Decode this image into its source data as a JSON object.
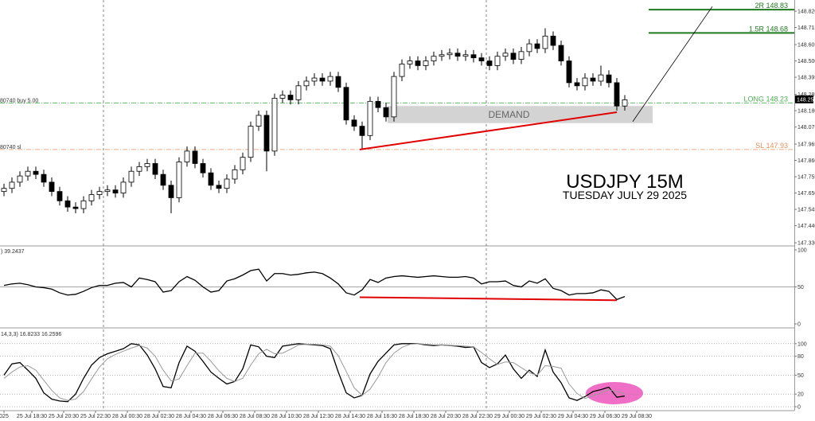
{
  "chart_data": [
    {
      "type": "candlestick",
      "title": "USDJPY 15M",
      "subtitle": "TUESDAY JULY 29 2025",
      "xlim": [
        -0.5,
        99.3
      ],
      "ylim": [
        147.315,
        148.892
      ],
      "yticks": [
        {
          "value": 148.82,
          "label": "148.820"
        },
        148.715,
        148.605,
        {
          "value": 148.5,
          "label": "148.500"
        },
        148.395,
        148.285,
        {
          "value": 148.18,
          "label": "148.180"
        },
        148.075,
        147.965,
        {
          "value": 147.86,
          "label": "147.860"
        },
        147.755,
        {
          "value": 147.65,
          "label": "147.650"
        },
        147.545,
        {
          "value": 147.44,
          "label": "147.440"
        },
        {
          "value": 147.33,
          "label": "147.330"
        }
      ],
      "up_color": "#ffffff",
      "down_color": "#000000",
      "open": [
        147.66,
        147.68,
        147.72,
        147.76,
        147.79,
        147.77,
        147.72,
        147.66,
        147.6,
        147.56,
        147.55,
        147.6,
        147.64,
        147.66,
        147.67,
        147.65,
        147.72,
        147.79,
        147.82,
        147.84,
        147.77,
        147.7,
        147.62,
        147.85,
        147.92,
        147.84,
        147.78,
        147.7,
        147.68,
        147.74,
        147.8,
        147.88,
        148.08,
        148.15,
        147.92,
        148.26,
        148.28,
        148.25,
        148.34,
        148.37,
        148.39,
        148.37,
        148.4,
        148.33,
        148.12,
        148.08,
        148.02,
        148.24,
        148.2,
        148.14,
        148.4,
        148.48,
        148.5,
        148.47,
        148.5,
        148.53,
        148.54,
        148.55,
        148.53,
        148.54,
        148.52,
        148.5,
        148.47,
        148.53,
        148.55,
        148.51,
        148.56,
        148.61,
        148.58,
        148.66,
        148.6,
        148.5,
        148.36,
        148.34,
        148.39,
        148.37,
        148.41,
        148.36,
        148.21
      ],
      "high": [
        147.71,
        147.75,
        147.79,
        147.82,
        147.82,
        147.8,
        147.75,
        147.69,
        147.63,
        147.59,
        147.63,
        147.67,
        147.69,
        147.7,
        147.7,
        147.75,
        147.82,
        147.85,
        147.87,
        147.87,
        147.8,
        147.73,
        147.88,
        147.95,
        147.95,
        147.87,
        147.81,
        147.73,
        147.77,
        147.83,
        147.91,
        148.11,
        148.18,
        148.18,
        148.29,
        148.31,
        148.31,
        148.37,
        148.4,
        148.42,
        148.42,
        148.43,
        148.43,
        148.36,
        148.15,
        148.11,
        148.27,
        148.27,
        148.23,
        148.43,
        148.51,
        148.53,
        148.53,
        148.53,
        148.56,
        148.57,
        148.58,
        148.58,
        148.57,
        148.57,
        148.55,
        148.53,
        148.56,
        148.58,
        148.58,
        148.59,
        148.64,
        148.64,
        148.71,
        148.69,
        148.63,
        148.53,
        148.39,
        148.42,
        148.42,
        148.47,
        148.44,
        148.39,
        148.28
      ],
      "low": [
        147.63,
        147.65,
        147.69,
        147.73,
        147.74,
        147.69,
        147.63,
        147.57,
        147.53,
        147.52,
        147.52,
        147.57,
        147.61,
        147.63,
        147.62,
        147.62,
        147.69,
        147.76,
        147.79,
        147.74,
        147.67,
        147.52,
        147.59,
        147.82,
        147.81,
        147.75,
        147.67,
        147.65,
        147.65,
        147.71,
        147.77,
        147.85,
        148.05,
        147.79,
        147.89,
        148.23,
        148.22,
        148.22,
        148.31,
        148.34,
        148.34,
        148.34,
        148.3,
        148.09,
        148.05,
        147.93,
        147.99,
        148.17,
        148.11,
        148.11,
        148.37,
        148.45,
        148.44,
        148.44,
        148.47,
        148.5,
        148.51,
        148.5,
        148.5,
        148.49,
        148.47,
        148.44,
        148.44,
        148.5,
        148.48,
        148.48,
        148.53,
        148.55,
        148.55,
        148.57,
        148.47,
        148.33,
        148.31,
        148.31,
        148.34,
        148.34,
        148.33,
        148.18,
        148.18
      ],
      "close": [
        147.68,
        147.72,
        147.76,
        147.79,
        147.77,
        147.72,
        147.66,
        147.6,
        147.56,
        147.55,
        147.6,
        147.64,
        147.66,
        147.67,
        147.65,
        147.72,
        147.79,
        147.82,
        147.84,
        147.77,
        147.7,
        147.62,
        147.85,
        147.92,
        147.84,
        147.78,
        147.7,
        147.68,
        147.74,
        147.8,
        147.88,
        148.08,
        148.15,
        147.92,
        148.26,
        148.28,
        148.25,
        148.34,
        148.37,
        148.39,
        148.37,
        148.4,
        148.33,
        148.12,
        148.08,
        148.02,
        148.24,
        148.2,
        148.14,
        148.4,
        148.48,
        148.5,
        148.47,
        148.5,
        148.53,
        148.54,
        148.55,
        148.53,
        148.54,
        148.52,
        148.5,
        148.47,
        148.53,
        148.55,
        148.51,
        148.56,
        148.61,
        148.58,
        148.66,
        148.6,
        148.5,
        148.36,
        148.34,
        148.39,
        148.37,
        148.41,
        148.36,
        148.21,
        148.25
      ],
      "last_price": 148.253,
      "levels": [
        {
          "label": "2R 148.83",
          "value": 148.83,
          "color": "#1f7a1f",
          "style": "solid"
        },
        {
          "label": "1.5R 148.68",
          "value": 148.68,
          "color": "#1f7a1f",
          "style": "solid"
        },
        {
          "label": "LONG 148.23",
          "value": 148.23,
          "color": "#4caf50",
          "style": "dashdot"
        },
        {
          "label": "SL 147.93",
          "value": 147.93,
          "color": "#e8905a",
          "style": "dashdot"
        }
      ],
      "order_labels": [
        "80740 buy 5.00",
        "80740 sl"
      ],
      "zone": {
        "label": "DEMAND",
        "top": 148.21,
        "bottom": 148.1,
        "x": [
          48.2,
          81.5
        ]
      },
      "trendlines": [
        {
          "color": "#e00000",
          "x": [
            44.7,
            77
          ],
          "values": [
            147.93,
            148.17
          ]
        },
        {
          "color": "#000000",
          "x": [
            79,
            89
          ],
          "values": [
            148.11,
            148.85
          ]
        }
      ]
    },
    {
      "type": "line",
      "label": ") 39.2437",
      "xlim": [
        -0.5,
        99.3
      ],
      "ylim": [
        -4.3,
        104.3
      ],
      "yticks": [
        0,
        50,
        100
      ],
      "level": 50,
      "color": "#000000",
      "values": [
        52,
        54,
        55,
        53,
        50,
        49,
        47,
        42,
        39,
        40,
        44,
        49,
        52,
        52,
        55,
        56,
        50,
        62,
        60,
        57,
        43,
        45,
        57,
        64,
        59,
        50,
        43,
        45,
        58,
        61,
        66,
        72,
        74,
        58,
        68,
        68,
        66,
        67,
        69,
        70,
        68,
        62,
        54,
        42,
        39,
        46,
        60,
        56,
        62,
        64,
        65,
        64,
        63,
        64,
        65,
        64,
        63,
        63,
        64,
        62,
        54,
        57,
        57,
        58,
        52,
        50,
        58,
        55,
        61,
        48,
        45,
        39,
        41,
        41,
        42,
        46,
        44,
        33,
        37
      ],
      "trendlines": [
        {
          "color": "#e00000",
          "x": [
            44.7,
            77
          ],
          "values": [
            36,
            32
          ]
        }
      ]
    },
    {
      "type": "line",
      "label": "14,3,3) 16.8233 16.2596",
      "xlim": [
        -0.5,
        99.3
      ],
      "ylim": [
        -5,
        122.5
      ],
      "yticks": [
        0,
        20,
        50,
        80,
        100
      ],
      "grid": true,
      "xticks": [
        {
          "value": 0,
          "label": "025"
        },
        {
          "value": 3.5,
          "label": "25 Jul 18:30"
        },
        {
          "value": 7.5,
          "label": "25 Jul 20:30"
        },
        {
          "value": 11.5,
          "label": "25 Jul 22:30"
        },
        {
          "value": 15.5,
          "label": "28 Jul 00:30"
        },
        {
          "value": 19.5,
          "label": "28 Jul 02:30"
        },
        {
          "value": 23.5,
          "label": "28 Jul 04:30"
        },
        {
          "value": 27.5,
          "label": "28 Jul 06:30"
        },
        {
          "value": 31.5,
          "label": "28 Jul 08:30"
        },
        {
          "value": 35.5,
          "label": "28 Jul 10:30"
        },
        {
          "value": 39.5,
          "label": "28 Jul 12:30"
        },
        {
          "value": 43.5,
          "label": "28 Jul 14:30"
        },
        {
          "value": 47.5,
          "label": "28 Jul 16:30"
        },
        {
          "value": 51.5,
          "label": "28 Jul 18:30"
        },
        {
          "value": 55.5,
          "label": "28 Jul 20:30"
        },
        {
          "value": 59.5,
          "label": "28 Jul 22:30"
        },
        {
          "value": 63.5,
          "label": "29 Jul 00:30"
        },
        {
          "value": 67.5,
          "label": "29 Jul 02:30"
        },
        {
          "value": 71.5,
          "label": "29 Jul 04:30"
        },
        {
          "value": 75.5,
          "label": "29 Jul 06:30"
        },
        {
          "value": 79.5,
          "label": "29 Jul 08:30"
        }
      ],
      "series": [
        {
          "color": "#000000",
          "values": [
            50,
            68,
            70,
            58,
            45,
            22,
            12,
            9,
            8,
            20,
            45,
            66,
            78,
            84,
            88,
            92,
            100,
            98,
            82,
            60,
            32,
            30,
            70,
            96,
            88,
            72,
            55,
            45,
            36,
            40,
            60,
            98,
            95,
            80,
            78,
            96,
            98,
            100,
            99,
            98,
            97,
            92,
            55,
            22,
            14,
            18,
            52,
            72,
            85,
            98,
            100,
            100,
            100,
            98,
            97,
            98,
            97,
            96,
            94,
            95,
            70,
            62,
            68,
            82,
            60,
            45,
            58,
            48,
            90,
            55,
            38,
            14,
            10,
            16,
            24,
            27,
            31,
            15,
            17
          ]
        },
        {
          "color": "#9a9a9a",
          "values": [
            45,
            55,
            63,
            65,
            58,
            42,
            26,
            14,
            10,
            12,
            24,
            44,
            63,
            76,
            83,
            88,
            93,
            97,
            93,
            80,
            58,
            41,
            44,
            65,
            85,
            85,
            72,
            57,
            45,
            40,
            45,
            66,
            84,
            91,
            84,
            85,
            91,
            98,
            99,
            99,
            98,
            96,
            81,
            56,
            30,
            18,
            28,
            47,
            70,
            85,
            94,
            99,
            100,
            99,
            98,
            98,
            97,
            97,
            96,
            95,
            86,
            76,
            67,
            71,
            70,
            62,
            54,
            50,
            65,
            64,
            61,
            36,
            21,
            13,
            17,
            22,
            27,
            24,
            21
          ]
        }
      ]
    }
  ]
}
